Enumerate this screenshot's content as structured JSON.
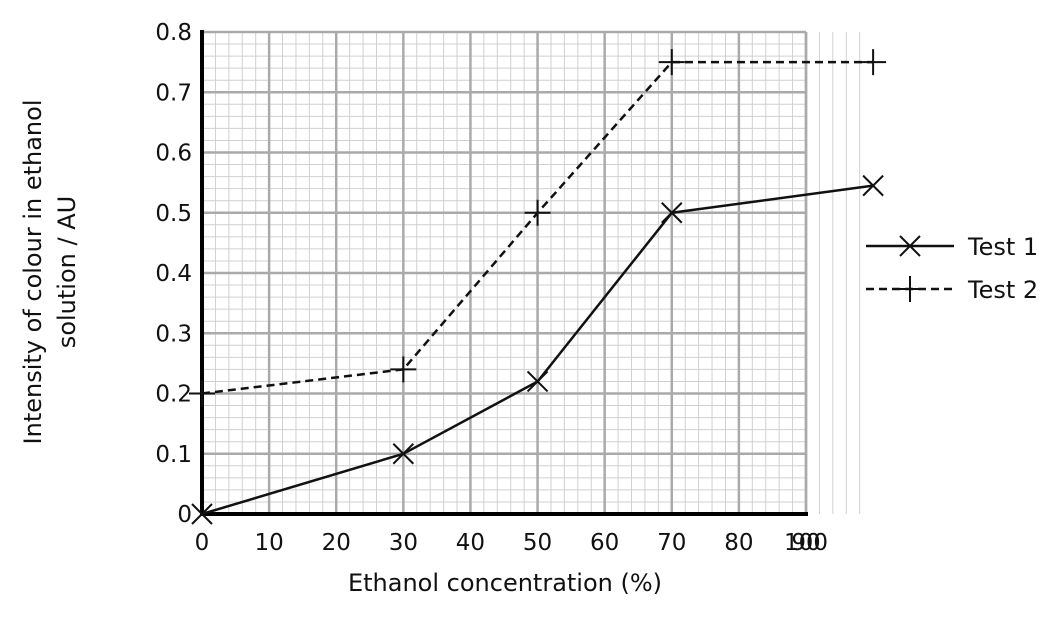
{
  "chart_data": {
    "type": "line",
    "xlabel": "Ethanol concentration (%)",
    "ylabel_lines": [
      "Intensity of colour in ethanol",
      "solution / AU"
    ],
    "x_tick_labels": [
      "0",
      "10",
      "20",
      "30",
      "40",
      "50",
      "60",
      "70",
      "80",
      "90",
      "100"
    ],
    "y_tick_labels": [
      "0",
      "0.1",
      "0.2",
      "0.3",
      "0.4",
      "0.5",
      "0.6",
      "0.7",
      "0.8"
    ],
    "xlim": [
      0,
      100
    ],
    "ylim": [
      0,
      0.8
    ],
    "grid": "on",
    "legend_position": "right",
    "series": [
      {
        "name": "Test 1",
        "line_style": "solid",
        "marker": "cross-x",
        "x": [
          0,
          30,
          50,
          70,
          100
        ],
        "y": [
          0,
          0.1,
          0.22,
          0.5,
          0.545
        ]
      },
      {
        "name": "Test 2",
        "line_style": "dashed",
        "marker": "plus",
        "x": [
          0,
          30,
          50,
          70,
          100
        ],
        "y": [
          0.2,
          0.24,
          0.5,
          0.75,
          0.75
        ]
      }
    ],
    "colors": {
      "line": "#111111",
      "grid_major": "#aaaaaa",
      "grid_minor": "#d0d0d0",
      "axis": "#000000"
    }
  }
}
